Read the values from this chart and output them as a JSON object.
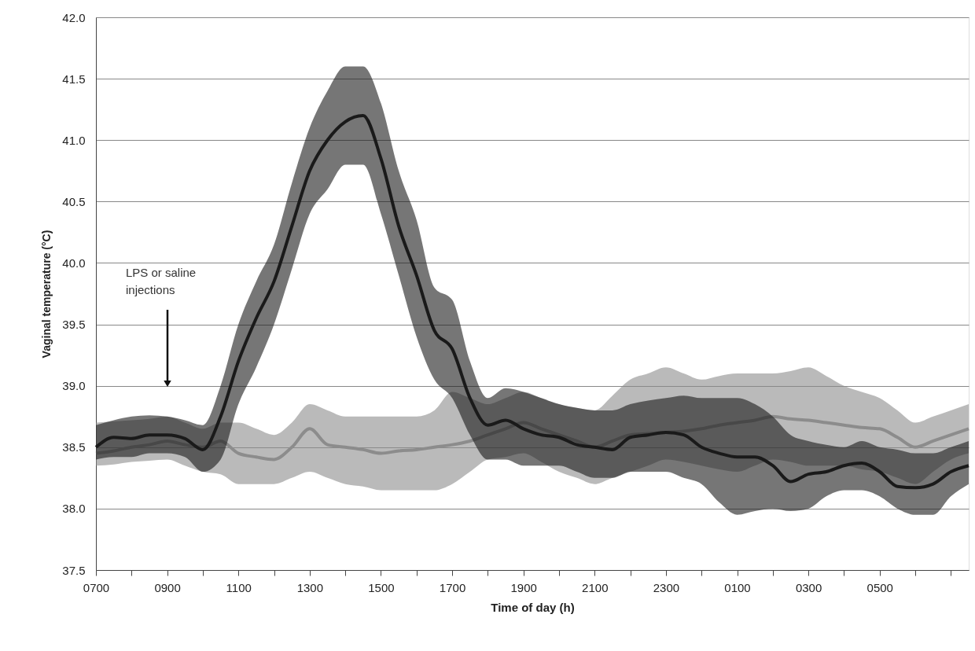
{
  "chart_data": {
    "type": "line",
    "xlabel": "Time of day (h)",
    "ylabel": "Vaginal temperature (°C)",
    "categories": [
      "0700",
      null,
      null,
      null,
      "0900",
      null,
      null,
      null,
      "1100",
      null,
      null,
      null,
      "1300",
      null,
      null,
      null,
      "1500",
      null,
      null,
      null,
      "1700",
      null,
      null,
      null,
      "1900",
      null,
      null,
      null,
      "2100",
      null,
      null,
      null,
      "2300",
      null,
      null,
      null,
      "0100",
      null,
      null,
      null,
      "0300",
      null,
      null,
      null,
      "0500",
      null,
      null,
      null,
      null,
      null
    ],
    "ylim": [
      37.5,
      42.0
    ],
    "yticks": [
      {
        "value": 37.5,
        "label": "37.5"
      },
      {
        "value": 38,
        "label": "38.0"
      },
      {
        "value": 38.5,
        "label": "38.5"
      },
      {
        "value": 39,
        "label": "39.0"
      },
      {
        "value": 39.5,
        "label": "39.5"
      },
      {
        "value": 40,
        "label": "40.0"
      },
      {
        "value": 40.5,
        "label": "40.5"
      },
      {
        "value": 41,
        "label": "41.0"
      },
      {
        "value": 41.5,
        "label": "41.5"
      },
      {
        "value": 42,
        "label": "42.0"
      }
    ],
    "grid": "y",
    "marker": "none",
    "line_style": "solid",
    "annotations": [
      "LPS or saline injections"
    ],
    "series": [
      {
        "color": "#8c8c8c",
        "values": [
          38.45,
          38.47,
          38.5,
          38.52,
          38.55,
          38.52,
          38.5,
          38.55,
          38.45,
          38.42,
          38.4,
          38.5,
          38.65,
          38.52,
          38.5,
          38.48,
          38.45,
          38.47,
          38.48,
          38.5,
          38.52,
          38.55,
          38.6,
          38.65,
          38.7,
          38.65,
          38.6,
          38.55,
          38.5,
          38.55,
          38.6,
          38.61,
          38.62,
          38.63,
          38.65,
          38.68,
          38.7,
          38.72,
          38.75,
          38.73,
          38.72,
          38.7,
          38.68,
          38.66,
          38.65,
          38.58,
          38.5,
          38.55,
          38.6,
          38.65
        ],
        "lower": [
          38.35,
          38.36,
          38.38,
          38.39,
          38.4,
          38.35,
          38.3,
          38.28,
          38.2,
          38.2,
          38.2,
          38.25,
          38.3,
          38.25,
          38.2,
          38.18,
          38.15,
          38.15,
          38.15,
          38.15,
          38.2,
          38.3,
          38.4,
          38.42,
          38.45,
          38.38,
          38.3,
          38.25,
          38.2,
          38.25,
          38.3,
          38.35,
          38.4,
          38.38,
          38.35,
          38.32,
          38.3,
          38.35,
          38.4,
          38.38,
          38.35,
          38.35,
          38.35,
          38.32,
          38.3,
          38.25,
          38.2,
          38.3,
          38.4,
          38.45
        ],
        "upper": [
          38.7,
          38.71,
          38.72,
          38.73,
          38.75,
          38.7,
          38.65,
          38.7,
          38.7,
          38.65,
          38.6,
          38.7,
          38.85,
          38.8,
          38.75,
          38.75,
          38.75,
          38.75,
          38.75,
          38.8,
          38.95,
          38.9,
          38.85,
          38.9,
          38.95,
          38.9,
          38.85,
          38.82,
          38.8,
          38.92,
          39.05,
          39.1,
          39.15,
          39.1,
          39.05,
          39.08,
          39.1,
          39.1,
          39.1,
          39.12,
          39.15,
          39.08,
          39.0,
          38.95,
          38.9,
          38.8,
          38.7,
          38.75,
          38.8,
          38.85
        ]
      },
      {
        "color": "#1a1a1a",
        "values": [
          38.5,
          38.58,
          38.57,
          38.6,
          38.6,
          38.57,
          38.48,
          38.75,
          39.2,
          39.55,
          39.85,
          40.3,
          40.75,
          41.0,
          41.15,
          41.2,
          40.85,
          40.3,
          39.9,
          39.45,
          39.3,
          38.9,
          38.68,
          38.72,
          38.65,
          38.6,
          38.58,
          38.52,
          38.5,
          38.48,
          38.58,
          38.6,
          38.62,
          38.6,
          38.5,
          38.45,
          38.42,
          38.42,
          38.35,
          38.22,
          38.28,
          38.3,
          38.35,
          38.37,
          38.3,
          38.18,
          38.17,
          38.2,
          38.3,
          38.35
        ],
        "lower": [
          38.4,
          38.42,
          38.42,
          38.45,
          38.45,
          38.42,
          38.3,
          38.4,
          38.85,
          39.15,
          39.5,
          39.95,
          40.4,
          40.6,
          40.8,
          40.8,
          40.4,
          39.9,
          39.4,
          39.05,
          38.9,
          38.6,
          38.4,
          38.4,
          38.35,
          38.35,
          38.35,
          38.3,
          38.25,
          38.25,
          38.3,
          38.3,
          38.3,
          38.25,
          38.2,
          38.05,
          37.95,
          37.98,
          38.0,
          37.98,
          38.0,
          38.1,
          38.15,
          38.15,
          38.1,
          38.0,
          37.95,
          37.95,
          38.1,
          38.2
        ],
        "upper": [
          38.68,
          38.72,
          38.75,
          38.76,
          38.75,
          38.72,
          38.68,
          39.0,
          39.5,
          39.85,
          40.15,
          40.65,
          41.1,
          41.4,
          41.6,
          41.6,
          41.3,
          40.75,
          40.35,
          39.8,
          39.7,
          39.2,
          38.9,
          38.98,
          38.95,
          38.9,
          38.85,
          38.82,
          38.8,
          38.8,
          38.85,
          38.88,
          38.9,
          38.92,
          38.9,
          38.9,
          38.9,
          38.85,
          38.75,
          38.6,
          38.55,
          38.52,
          38.5,
          38.55,
          38.5,
          38.48,
          38.45,
          38.45,
          38.5,
          38.55
        ]
      }
    ]
  }
}
